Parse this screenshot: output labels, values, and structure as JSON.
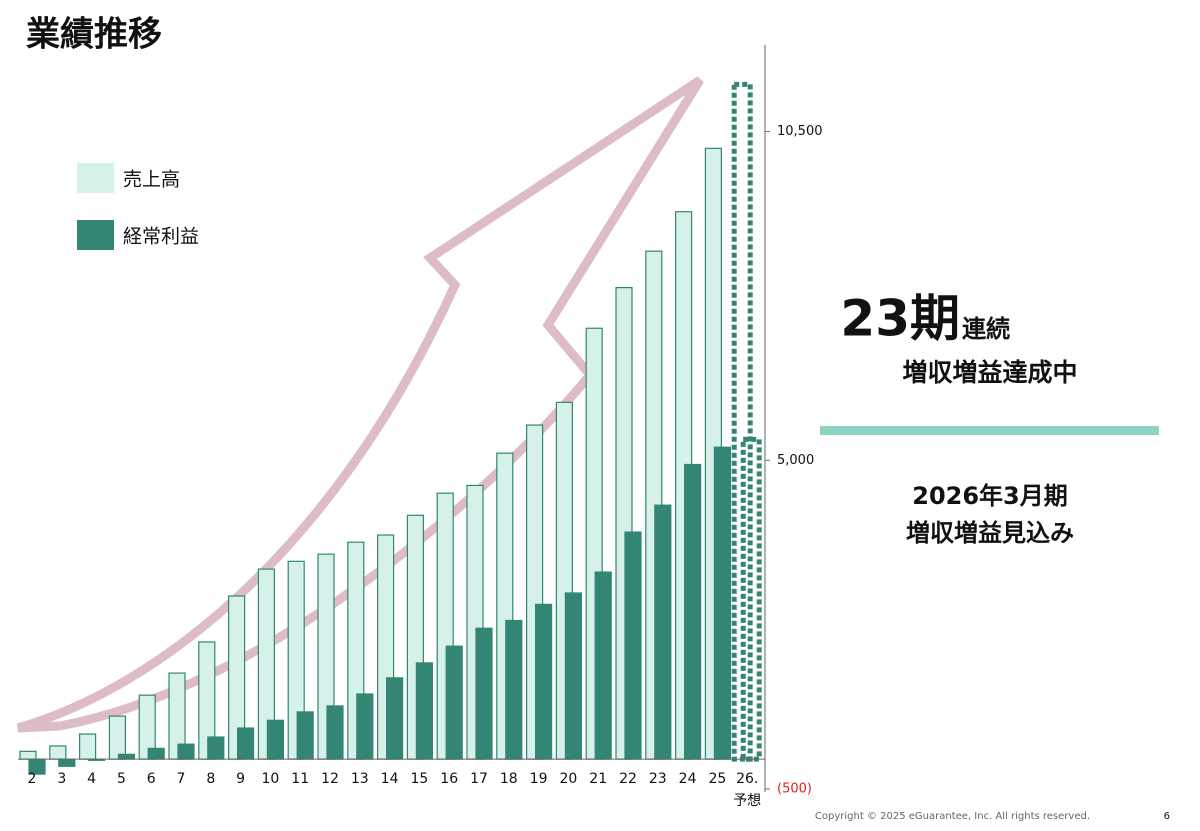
{
  "chart_data": {
    "type": "bar",
    "title": "業績推移",
    "categories": [
      "2",
      "3",
      "4",
      "5",
      "6",
      "7",
      "8",
      "9",
      "10",
      "11",
      "12",
      "13",
      "14",
      "15",
      "16",
      "17",
      "18",
      "19",
      "20",
      "21",
      "22",
      "23",
      "24",
      "25",
      "26."
    ],
    "forecast_label": "予想",
    "series": [
      {
        "name": "売上高",
        "color": "#d6f0ea",
        "values": [
          130,
          220,
          420,
          720,
          1070,
          1440,
          1960,
          2730,
          3180,
          3310,
          3430,
          3630,
          3750,
          4080,
          4450,
          4580,
          5120,
          5590,
          5970,
          7210,
          7890,
          8500,
          9160,
          10220,
          11290
        ]
      },
      {
        "name": "経常利益",
        "color": "#338673",
        "values": [
          -250,
          -120,
          -20,
          80,
          180,
          250,
          370,
          520,
          650,
          790,
          890,
          1090,
          1360,
          1610,
          1890,
          2190,
          2320,
          2590,
          2780,
          3130,
          3800,
          4250,
          4930,
          5220,
          5350
        ]
      }
    ],
    "forecast_last": true,
    "ylim": [
      -500,
      12000
    ],
    "yticks": [
      {
        "value": 10500,
        "label": "10,500"
      },
      {
        "value": 5000,
        "label": "5,000"
      },
      {
        "value": -500,
        "label": "(500)"
      }
    ]
  },
  "side_panel": {
    "count": "23期",
    "count_suffix": "連続",
    "line1": "増収増益達成中",
    "line2": "2026年3月期",
    "line3": "増収増益見込み"
  },
  "footer": {
    "copyright": "Copyright © 2025 eGuarantee, Inc. All rights reserved.",
    "page": "6"
  }
}
